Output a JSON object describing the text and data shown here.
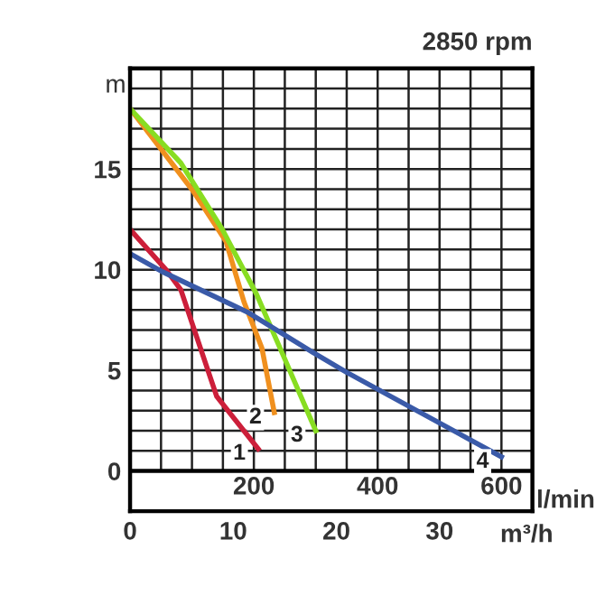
{
  "chart_data": {
    "type": "line",
    "title": "2850 rpm",
    "xlabel": "l/min",
    "ylabel": "m",
    "x2label": "m³/h",
    "xlim": [
      0,
      650
    ],
    "ylim": [
      -2,
      20
    ],
    "x2lim": [
      0,
      39
    ],
    "x2ticks": [
      0,
      10,
      20,
      30
    ],
    "xticks": [
      {
        "value": 0,
        "label": null
      },
      {
        "value": 50,
        "label": null
      },
      {
        "value": 100,
        "label": null
      },
      {
        "value": 150,
        "label": null
      },
      200,
      {
        "value": 250,
        "label": null
      },
      {
        "value": 300,
        "label": null
      },
      {
        "value": 350,
        "label": null
      },
      400,
      {
        "value": 450,
        "label": null
      },
      {
        "value": 500,
        "label": null
      },
      {
        "value": 550,
        "label": null
      },
      600,
      {
        "value": 650,
        "label": null
      }
    ],
    "yticks": [
      0,
      {
        "value": 1,
        "label": null
      },
      {
        "value": 2,
        "label": null
      },
      {
        "value": 3,
        "label": null
      },
      {
        "value": 4,
        "label": null
      },
      5,
      {
        "value": 6,
        "label": null
      },
      {
        "value": 7,
        "label": null
      },
      {
        "value": 8,
        "label": null
      },
      {
        "value": 9,
        "label": null
      },
      10,
      {
        "value": 11,
        "label": null
      },
      {
        "value": 12,
        "label": null
      },
      {
        "value": 13,
        "label": null
      },
      {
        "value": 14,
        "label": null
      },
      15,
      {
        "value": 16,
        "label": null
      },
      {
        "value": 17,
        "label": null
      },
      {
        "value": 18,
        "label": null
      },
      {
        "value": 19,
        "label": null
      },
      {
        "value": 20,
        "label": null
      }
    ],
    "grid": true,
    "series": [
      {
        "color": "#cc1f3a",
        "x": [
          0,
          58,
          82,
          140,
          207
        ],
        "values": [
          12.0,
          10.0,
          9.0,
          3.7,
          1.1
        ]
      },
      {
        "color": "#f0901e",
        "x": [
          0,
          102,
          155,
          184,
          213,
          233
        ],
        "values": [
          18.0,
          13.9,
          11.4,
          8.4,
          6.1,
          2.9
        ]
      },
      {
        "color": "#88dd22",
        "x": [
          0,
          82,
          149,
          204,
          248,
          300
        ],
        "values": [
          18.0,
          15.3,
          12.0,
          8.8,
          5.7,
          2.0
        ]
      },
      {
        "color": "#3a5aa8",
        "x": [
          0,
          52,
          189,
          295,
          350,
          600
        ],
        "values": [
          10.8,
          9.9,
          7.9,
          5.9,
          4.9,
          0.7
        ]
      }
    ],
    "annotations": [
      {
        "text": "1",
        "x": 207,
        "y": 1.1
      },
      {
        "text": "2",
        "x": 233,
        "y": 2.9
      },
      {
        "text": "3",
        "x": 300,
        "y": 2.0
      },
      {
        "text": "4",
        "x": 600,
        "y": 0.7
      }
    ]
  }
}
